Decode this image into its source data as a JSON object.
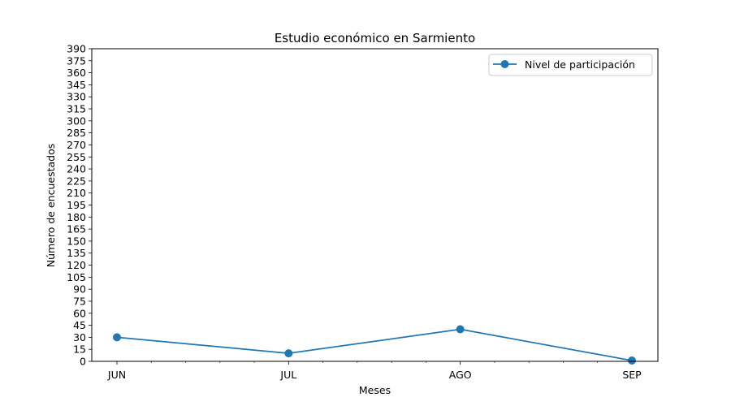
{
  "chart_data": {
    "type": "line",
    "title": "Estudio económico en Sarmiento",
    "xlabel": "Meses",
    "ylabel": "Número de encuestados",
    "categories": [
      "JUN",
      "JUL",
      "AGO",
      "SEP"
    ],
    "series": [
      {
        "name": "Nivel de participación",
        "values": [
          30,
          10,
          40,
          1
        ],
        "color": "#1f77b4"
      }
    ],
    "ylim": [
      0,
      390
    ],
    "ytick_step": 15,
    "legend": "top-right",
    "grid": false
  }
}
